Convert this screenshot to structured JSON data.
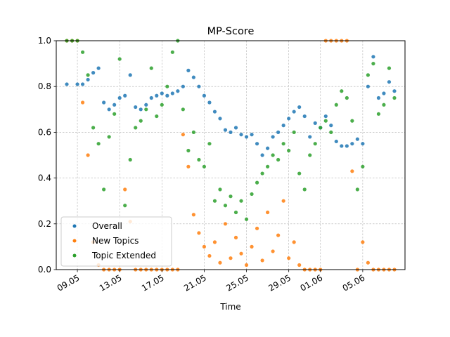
{
  "chart_data": {
    "type": "scatter",
    "title": "MP-Score",
    "xlabel": "Time",
    "ylabel": "",
    "x_range": [
      "2019-05-07",
      "2019-06-09"
    ],
    "ylim": [
      0,
      1
    ],
    "x_ticks": [
      "09.05",
      "13.05",
      "17.05",
      "21.05",
      "25.05",
      "29.05",
      "01.06",
      "05.06"
    ],
    "x_tick_dates": [
      "2019-05-09",
      "2019-05-13",
      "2019-05-17",
      "2019-05-21",
      "2019-05-25",
      "2019-05-29",
      "2019-06-01",
      "2019-06-05"
    ],
    "y_ticks": [
      "0.0",
      "0.2",
      "0.4",
      "0.6",
      "0.8",
      "1.0"
    ],
    "y_tick_values": [
      0.0,
      0.2,
      0.4,
      0.6,
      0.8,
      1.0
    ],
    "grid": true,
    "legend_position": "lower-left",
    "series": [
      {
        "name": "Overall",
        "color": "#1f77b4",
        "points": [
          [
            "2019-05-08",
            0.81
          ],
          [
            "2019-05-09",
            0.81
          ],
          [
            "2019-05-09 12:00",
            0.81
          ],
          [
            "2019-05-10",
            0.83
          ],
          [
            "2019-05-10 12:00",
            0.86
          ],
          [
            "2019-05-11",
            0.88
          ],
          [
            "2019-05-11 12:00",
            0.73
          ],
          [
            "2019-05-12",
            0.7
          ],
          [
            "2019-05-12 12:00",
            0.72
          ],
          [
            "2019-05-13",
            0.75
          ],
          [
            "2019-05-13 12:00",
            0.76
          ],
          [
            "2019-05-14",
            0.85
          ],
          [
            "2019-05-14 12:00",
            0.71
          ],
          [
            "2019-05-15",
            0.7
          ],
          [
            "2019-05-15 12:00",
            0.72
          ],
          [
            "2019-05-16",
            0.75
          ],
          [
            "2019-05-16 12:00",
            0.76
          ],
          [
            "2019-05-17",
            0.77
          ],
          [
            "2019-05-17 12:00",
            0.76
          ],
          [
            "2019-05-18",
            0.77
          ],
          [
            "2019-05-18 12:00",
            0.78
          ],
          [
            "2019-05-19",
            0.8
          ],
          [
            "2019-05-19 12:00",
            0.87
          ],
          [
            "2019-05-20",
            0.84
          ],
          [
            "2019-05-20 12:00",
            0.8
          ],
          [
            "2019-05-21",
            0.76
          ],
          [
            "2019-05-21 12:00",
            0.73
          ],
          [
            "2019-05-22",
            0.69
          ],
          [
            "2019-05-22 12:00",
            0.66
          ],
          [
            "2019-05-23",
            0.61
          ],
          [
            "2019-05-23 12:00",
            0.6
          ],
          [
            "2019-05-24",
            0.62
          ],
          [
            "2019-05-24 12:00",
            0.59
          ],
          [
            "2019-05-25",
            0.58
          ],
          [
            "2019-05-25 12:00",
            0.59
          ],
          [
            "2019-05-26",
            0.55
          ],
          [
            "2019-05-26 12:00",
            0.5
          ],
          [
            "2019-05-27",
            0.53
          ],
          [
            "2019-05-27 12:00",
            0.58
          ],
          [
            "2019-05-28",
            0.6
          ],
          [
            "2019-05-28 12:00",
            0.63
          ],
          [
            "2019-05-29",
            0.66
          ],
          [
            "2019-05-29 12:00",
            0.69
          ],
          [
            "2019-05-30",
            0.71
          ],
          [
            "2019-05-30 12:00",
            0.67
          ],
          [
            "2019-05-31",
            0.58
          ],
          [
            "2019-05-31 12:00",
            0.64
          ],
          [
            "2019-06-01",
            0.62
          ],
          [
            "2019-06-01 12:00",
            0.67
          ],
          [
            "2019-06-02",
            0.63
          ],
          [
            "2019-06-02 12:00",
            0.56
          ],
          [
            "2019-06-03",
            0.54
          ],
          [
            "2019-06-03 12:00",
            0.54
          ],
          [
            "2019-06-04",
            0.55
          ],
          [
            "2019-06-04 12:00",
            0.57
          ],
          [
            "2019-06-05",
            0.55
          ],
          [
            "2019-06-05 12:00",
            0.8
          ],
          [
            "2019-06-06",
            0.93
          ],
          [
            "2019-06-06 12:00",
            0.75
          ],
          [
            "2019-06-07",
            0.77
          ],
          [
            "2019-06-07 12:00",
            0.82
          ],
          [
            "2019-06-08",
            0.78
          ]
        ]
      },
      {
        "name": "New Topics",
        "color": "#ff7f0e",
        "points": [
          [
            "2019-05-08",
            1.0
          ],
          [
            "2019-05-08 12:00",
            1.0
          ],
          [
            "2019-05-09",
            1.0
          ],
          [
            "2019-05-09 12:00",
            0.73
          ],
          [
            "2019-05-10",
            0.5
          ],
          [
            "2019-05-10 12:00",
            0.12
          ],
          [
            "2019-05-11",
            0.02
          ],
          [
            "2019-05-11 12:00",
            0.0
          ],
          [
            "2019-05-12",
            0.0
          ],
          [
            "2019-05-12 12:00",
            0.0
          ],
          [
            "2019-05-13",
            0.0
          ],
          [
            "2019-05-13 12:00",
            0.35
          ],
          [
            "2019-05-14",
            0.21
          ],
          [
            "2019-05-14 12:00",
            0.0
          ],
          [
            "2019-05-15",
            0.0
          ],
          [
            "2019-05-15 12:00",
            0.0
          ],
          [
            "2019-05-16",
            0.0
          ],
          [
            "2019-05-16 12:00",
            0.0
          ],
          [
            "2019-05-17",
            0.0
          ],
          [
            "2019-05-17 12:00",
            0.0
          ],
          [
            "2019-05-18",
            0.0
          ],
          [
            "2019-05-18 12:00",
            0.0
          ],
          [
            "2019-05-19",
            0.59
          ],
          [
            "2019-05-19 12:00",
            0.45
          ],
          [
            "2019-05-20",
            0.24
          ],
          [
            "2019-05-20 12:00",
            0.16
          ],
          [
            "2019-05-21",
            0.1
          ],
          [
            "2019-05-21 12:00",
            0.06
          ],
          [
            "2019-05-22",
            0.12
          ],
          [
            "2019-05-22 12:00",
            0.03
          ],
          [
            "2019-05-23",
            0.2
          ],
          [
            "2019-05-23 12:00",
            0.05
          ],
          [
            "2019-05-24",
            0.14
          ],
          [
            "2019-05-24 12:00",
            0.07
          ],
          [
            "2019-05-25",
            0.02
          ],
          [
            "2019-05-25 12:00",
            0.1
          ],
          [
            "2019-05-26",
            0.18
          ],
          [
            "2019-05-26 12:00",
            0.04
          ],
          [
            "2019-05-27",
            0.25
          ],
          [
            "2019-05-27 12:00",
            0.08
          ],
          [
            "2019-05-28",
            0.15
          ],
          [
            "2019-05-28 12:00",
            0.3
          ],
          [
            "2019-05-29",
            0.05
          ],
          [
            "2019-05-29 12:00",
            0.12
          ],
          [
            "2019-05-30",
            0.02
          ],
          [
            "2019-05-30 12:00",
            0.0
          ],
          [
            "2019-05-31",
            0.0
          ],
          [
            "2019-05-31 12:00",
            0.0
          ],
          [
            "2019-06-01",
            0.0
          ],
          [
            "2019-06-01 12:00",
            1.0
          ],
          [
            "2019-06-02",
            1.0
          ],
          [
            "2019-06-02 12:00",
            1.0
          ],
          [
            "2019-06-03",
            1.0
          ],
          [
            "2019-06-03 12:00",
            1.0
          ],
          [
            "2019-06-04",
            0.43
          ],
          [
            "2019-06-04 12:00",
            0.0
          ],
          [
            "2019-06-05",
            0.12
          ],
          [
            "2019-06-05 12:00",
            0.03
          ],
          [
            "2019-06-06",
            0.0
          ],
          [
            "2019-06-06 12:00",
            0.0
          ],
          [
            "2019-06-07",
            0.0
          ],
          [
            "2019-06-07 12:00",
            0.0
          ],
          [
            "2019-06-08",
            0.0
          ]
        ]
      },
      {
        "name": "Topic Extended",
        "color": "#2ca02c",
        "points": [
          [
            "2019-05-08",
            1.0
          ],
          [
            "2019-05-08 12:00",
            1.0
          ],
          [
            "2019-05-09",
            1.0
          ],
          [
            "2019-05-09 12:00",
            0.95
          ],
          [
            "2019-05-10",
            0.85
          ],
          [
            "2019-05-10 12:00",
            0.62
          ],
          [
            "2019-05-11",
            0.55
          ],
          [
            "2019-05-11 12:00",
            0.35
          ],
          [
            "2019-05-12",
            0.58
          ],
          [
            "2019-05-12 12:00",
            0.68
          ],
          [
            "2019-05-13",
            0.92
          ],
          [
            "2019-05-13 12:00",
            0.28
          ],
          [
            "2019-05-14",
            0.48
          ],
          [
            "2019-05-14 12:00",
            0.62
          ],
          [
            "2019-05-15",
            0.65
          ],
          [
            "2019-05-15 12:00",
            0.7
          ],
          [
            "2019-05-16",
            0.88
          ],
          [
            "2019-05-16 12:00",
            0.67
          ],
          [
            "2019-05-17",
            0.72
          ],
          [
            "2019-05-17 12:00",
            0.8
          ],
          [
            "2019-05-18",
            0.95
          ],
          [
            "2019-05-18 12:00",
            1.0
          ],
          [
            "2019-05-19",
            0.7
          ],
          [
            "2019-05-19 12:00",
            0.52
          ],
          [
            "2019-05-20",
            0.6
          ],
          [
            "2019-05-20 12:00",
            0.48
          ],
          [
            "2019-05-21",
            0.45
          ],
          [
            "2019-05-21 12:00",
            0.55
          ],
          [
            "2019-05-22",
            0.3
          ],
          [
            "2019-05-22 12:00",
            0.35
          ],
          [
            "2019-05-23",
            0.28
          ],
          [
            "2019-05-23 12:00",
            0.32
          ],
          [
            "2019-05-24",
            0.25
          ],
          [
            "2019-05-24 12:00",
            0.3
          ],
          [
            "2019-05-25",
            0.22
          ],
          [
            "2019-05-25 12:00",
            0.33
          ],
          [
            "2019-05-26",
            0.38
          ],
          [
            "2019-05-26 12:00",
            0.42
          ],
          [
            "2019-05-27",
            0.45
          ],
          [
            "2019-05-27 12:00",
            0.5
          ],
          [
            "2019-05-28",
            0.48
          ],
          [
            "2019-05-28 12:00",
            0.55
          ],
          [
            "2019-05-29",
            0.52
          ],
          [
            "2019-05-29 12:00",
            0.6
          ],
          [
            "2019-05-30",
            0.42
          ],
          [
            "2019-05-30 12:00",
            0.35
          ],
          [
            "2019-05-31",
            0.5
          ],
          [
            "2019-05-31 12:00",
            0.55
          ],
          [
            "2019-06-01",
            0.62
          ],
          [
            "2019-06-01 12:00",
            0.65
          ],
          [
            "2019-06-02",
            0.6
          ],
          [
            "2019-06-02 12:00",
            0.72
          ],
          [
            "2019-06-03",
            0.78
          ],
          [
            "2019-06-03 12:00",
            0.75
          ],
          [
            "2019-06-04",
            0.65
          ],
          [
            "2019-06-04 12:00",
            0.35
          ],
          [
            "2019-06-05",
            0.45
          ],
          [
            "2019-06-05 12:00",
            0.85
          ],
          [
            "2019-06-06",
            0.9
          ],
          [
            "2019-06-06 12:00",
            0.68
          ],
          [
            "2019-06-07",
            0.72
          ],
          [
            "2019-06-07 12:00",
            0.88
          ],
          [
            "2019-06-08",
            0.75
          ]
        ]
      }
    ]
  }
}
